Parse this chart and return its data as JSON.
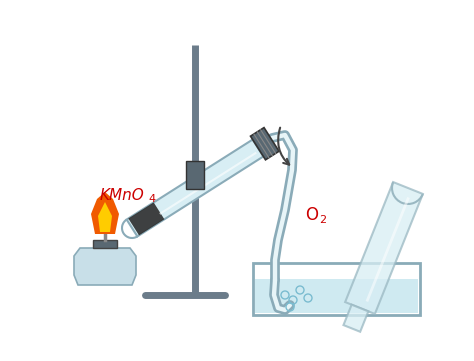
{
  "bg_color": "#ffffff",
  "stand_color": "#6b7c8a",
  "tube_fill": "#d8eef4",
  "tube_edge": "#8aabb8",
  "kmno4_color": "#2d2d2d",
  "stopper_color": "#596872",
  "water_color": "#c0e4ed",
  "trough_edge": "#8aabb8",
  "flame_orange": "#f05a00",
  "flame_yellow": "#ffcc00",
  "lamp_body": "#c8dfe8",
  "lamp_edge": "#8aabb8",
  "delivery_edge": "#8aabb8",
  "delivery_fill": "#e8f5f8",
  "flask_fill": "#d8eef4",
  "flask_edge": "#9ab8c2",
  "label_color": "#cc0000",
  "arrow_color": "#444444",
  "bubble_color": "#7bbcd0"
}
